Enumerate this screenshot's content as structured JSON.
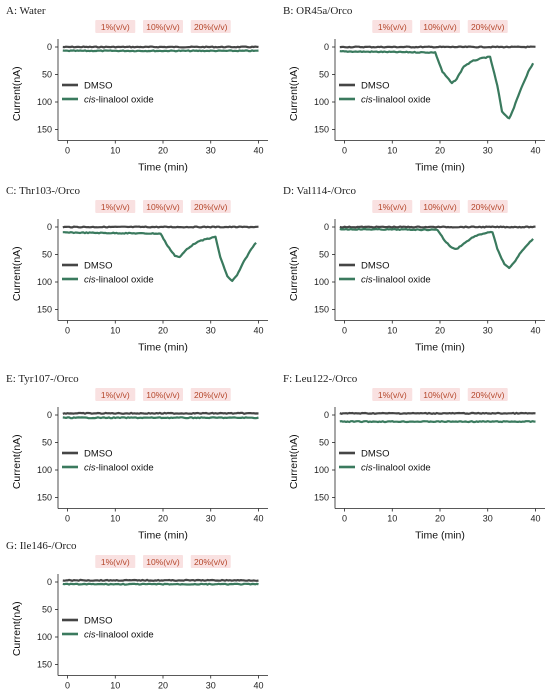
{
  "figure": {
    "colors": {
      "dmso": "#454545",
      "linalool": "#3a7a5e",
      "conc_text": "#b4462a",
      "conc_bg": "#f9e1e1"
    }
  },
  "chart_data": [
    {
      "type": "line",
      "title": "A: Water",
      "xlabel": "Time (min)",
      "ylabel": "Current(nA)",
      "xlim": [
        -2,
        42
      ],
      "ylim": [
        0,
        170
      ],
      "y_inverted": true,
      "x_ticks": [
        0,
        10,
        20,
        30,
        40
      ],
      "y_ticks": [
        0,
        50,
        100,
        150
      ],
      "concentrations": [
        {
          "label": "1%(v/v)",
          "x": 10
        },
        {
          "label": "10%(v/v)",
          "x": 20
        },
        {
          "label": "20%(v/v)",
          "x": 30
        }
      ],
      "series": [
        {
          "name": "DMSO",
          "color": "#454545",
          "points": [
            [
              -1,
              0
            ],
            [
              40,
              0
            ]
          ]
        },
        {
          "name": "cis-linalool oxide",
          "color": "#3a7a5e",
          "points": [
            [
              -1,
              7
            ],
            [
              40,
              7
            ]
          ]
        }
      ]
    },
    {
      "type": "line",
      "title": "B: OR45a/Orco",
      "xlabel": "Time (min)",
      "ylabel": "Current(nA)",
      "xlim": [
        -2,
        42
      ],
      "ylim": [
        0,
        170
      ],
      "y_inverted": true,
      "x_ticks": [
        0,
        10,
        20,
        30,
        40
      ],
      "y_ticks": [
        0,
        50,
        100,
        150
      ],
      "concentrations": [
        {
          "label": "1%(v/v)",
          "x": 10
        },
        {
          "label": "10%(v/v)",
          "x": 20
        },
        {
          "label": "20%(v/v)",
          "x": 30
        }
      ],
      "series": [
        {
          "name": "DMSO",
          "color": "#454545",
          "points": [
            [
              -1,
              0
            ],
            [
              40,
              0
            ]
          ]
        },
        {
          "name": "cis-linalool oxide",
          "color": "#3a7a5e",
          "points": [
            [
              -1,
              8
            ],
            [
              19,
              10
            ],
            [
              20.5,
              45
            ],
            [
              22.5,
              66
            ],
            [
              23.5,
              58
            ],
            [
              25,
              35
            ],
            [
              27,
              25
            ],
            [
              29,
              20
            ],
            [
              30.5,
              18
            ],
            [
              32,
              70
            ],
            [
              33,
              118
            ],
            [
              34.5,
              130
            ],
            [
              35.5,
              110
            ],
            [
              37,
              75
            ],
            [
              38.5,
              45
            ],
            [
              39.5,
              30
            ]
          ]
        }
      ]
    },
    {
      "type": "line",
      "title": "C: Thr103-/Orco",
      "xlabel": "Time (min)",
      "ylabel": "Current(nA)",
      "xlim": [
        -2,
        42
      ],
      "ylim": [
        0,
        170
      ],
      "y_inverted": true,
      "x_ticks": [
        0,
        10,
        20,
        30,
        40
      ],
      "y_ticks": [
        0,
        50,
        100,
        150
      ],
      "concentrations": [
        {
          "label": "1%(v/v)",
          "x": 10
        },
        {
          "label": "10%(v/v)",
          "x": 20
        },
        {
          "label": "20%(v/v)",
          "x": 30
        }
      ],
      "series": [
        {
          "name": "DMSO",
          "color": "#454545",
          "points": [
            [
              -1,
              0
            ],
            [
              40,
              0
            ]
          ]
        },
        {
          "name": "cis-linalool oxide",
          "color": "#3a7a5e",
          "points": [
            [
              -1,
              10
            ],
            [
              19.5,
              12
            ],
            [
              21,
              35
            ],
            [
              22.5,
              52
            ],
            [
              23.5,
              55
            ],
            [
              25,
              40
            ],
            [
              27,
              28
            ],
            [
              29,
              22
            ],
            [
              31,
              18
            ],
            [
              32,
              55
            ],
            [
              33.5,
              90
            ],
            [
              34.5,
              98
            ],
            [
              35.5,
              88
            ],
            [
              37,
              62
            ],
            [
              38.5,
              40
            ],
            [
              39.5,
              28
            ]
          ]
        }
      ]
    },
    {
      "type": "line",
      "title": "D: Val114-/Orco",
      "xlabel": "Time (min)",
      "ylabel": "Current(nA)",
      "xlim": [
        -2,
        42
      ],
      "ylim": [
        0,
        170
      ],
      "y_inverted": true,
      "x_ticks": [
        0,
        10,
        20,
        30,
        40
      ],
      "y_ticks": [
        0,
        50,
        100,
        150
      ],
      "concentrations": [
        {
          "label": "1%(v/v)",
          "x": 10
        },
        {
          "label": "10%(v/v)",
          "x": 20
        },
        {
          "label": "20%(v/v)",
          "x": 30
        }
      ],
      "series": [
        {
          "name": "DMSO",
          "color": "#454545",
          "points": [
            [
              -1,
              0
            ],
            [
              40,
              0
            ]
          ]
        },
        {
          "name": "cis-linalool oxide",
          "color": "#3a7a5e",
          "points": [
            [
              -1,
              4
            ],
            [
              19.5,
              5
            ],
            [
              21,
              25
            ],
            [
              22.5,
              38
            ],
            [
              23.5,
              40
            ],
            [
              25,
              30
            ],
            [
              27,
              18
            ],
            [
              29,
              12
            ],
            [
              31,
              9
            ],
            [
              32,
              40
            ],
            [
              33.5,
              68
            ],
            [
              34.5,
              75
            ],
            [
              35.5,
              65
            ],
            [
              37,
              45
            ],
            [
              38.5,
              30
            ],
            [
              39.5,
              22
            ]
          ]
        }
      ]
    },
    {
      "type": "line",
      "title": "E: Tyr107-/Orco",
      "xlabel": "Time (min)",
      "ylabel": "Current(nA)",
      "xlim": [
        -2,
        42
      ],
      "ylim": [
        0,
        170
      ],
      "y_inverted": true,
      "x_ticks": [
        0,
        10,
        20,
        30,
        40
      ],
      "y_ticks": [
        0,
        50,
        100,
        150
      ],
      "concentrations": [
        {
          "label": "1%(v/v)",
          "x": 10
        },
        {
          "label": "10%(v/v)",
          "x": 20
        },
        {
          "label": "20%(v/v)",
          "x": 30
        }
      ],
      "series": [
        {
          "name": "DMSO",
          "color": "#454545",
          "points": [
            [
              -1,
              -3
            ],
            [
              40,
              -3
            ]
          ]
        },
        {
          "name": "cis-linalool oxide",
          "color": "#3a7a5e",
          "points": [
            [
              -1,
              5
            ],
            [
              40,
              5
            ]
          ]
        }
      ]
    },
    {
      "type": "line",
      "title": "F: Leu122-/Orco",
      "xlabel": "Time (min)",
      "ylabel": "Current(nA)",
      "xlim": [
        -2,
        42
      ],
      "ylim": [
        0,
        170
      ],
      "y_inverted": true,
      "x_ticks": [
        0,
        10,
        20,
        30,
        40
      ],
      "y_ticks": [
        0,
        50,
        100,
        150
      ],
      "concentrations": [
        {
          "label": "1%(v/v)",
          "x": 10
        },
        {
          "label": "10%(v/v)",
          "x": 20
        },
        {
          "label": "20%(v/v)",
          "x": 30
        }
      ],
      "series": [
        {
          "name": "DMSO",
          "color": "#454545",
          "points": [
            [
              -1,
              -3
            ],
            [
              40,
              -3
            ]
          ]
        },
        {
          "name": "cis-linalool oxide",
          "color": "#3a7a5e",
          "points": [
            [
              -1,
              12
            ],
            [
              40,
              12
            ]
          ]
        }
      ]
    },
    {
      "type": "line",
      "title": "G: Ile146-/Orco",
      "xlabel": "Time (min)",
      "ylabel": "Current(nA)",
      "xlim": [
        -2,
        42
      ],
      "ylim": [
        0,
        170
      ],
      "y_inverted": true,
      "x_ticks": [
        0,
        10,
        20,
        30,
        40
      ],
      "y_ticks": [
        0,
        50,
        100,
        150
      ],
      "concentrations": [
        {
          "label": "1%(v/v)",
          "x": 10
        },
        {
          "label": "10%(v/v)",
          "x": 20
        },
        {
          "label": "20%(v/v)",
          "x": 30
        }
      ],
      "series": [
        {
          "name": "DMSO",
          "color": "#454545",
          "points": [
            [
              -1,
              -3
            ],
            [
              40,
              -3
            ]
          ]
        },
        {
          "name": "cis-linalool oxide",
          "color": "#3a7a5e",
          "points": [
            [
              -1,
              4
            ],
            [
              40,
              4
            ]
          ]
        }
      ]
    }
  ]
}
